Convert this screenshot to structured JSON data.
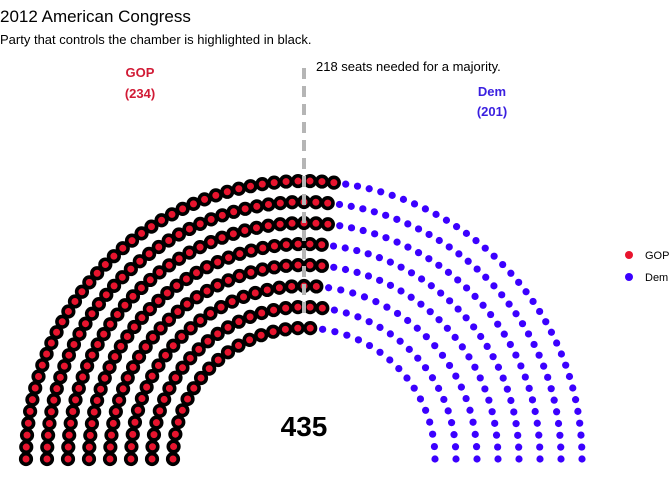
{
  "chart_data": {
    "type": "parliament",
    "title": "2012 American Congress",
    "subtitle": "Party that controls the chamber is highlighted in black.",
    "total_seats": 435,
    "total_label": "435",
    "majority_seats": 218,
    "majority_label": "218 seats needed for a majority.",
    "controlling_party": "GOP",
    "rows": 8,
    "series": [
      {
        "name": "GOP",
        "seats": 234,
        "color": "#e8142e",
        "label": "GOP",
        "seat_label": "(234)",
        "label_color": "#d11a35"
      },
      {
        "name": "Dem",
        "seats": 201,
        "color": "#3b00ff",
        "label": "Dem",
        "seat_label": "(201)",
        "label_color": "#3a1fe0"
      }
    ],
    "legend": {
      "position": "right",
      "items": [
        {
          "name": "GOP",
          "color": "#e8142e"
        },
        {
          "name": "Dem",
          "color": "#3b00ff"
        }
      ]
    }
  }
}
